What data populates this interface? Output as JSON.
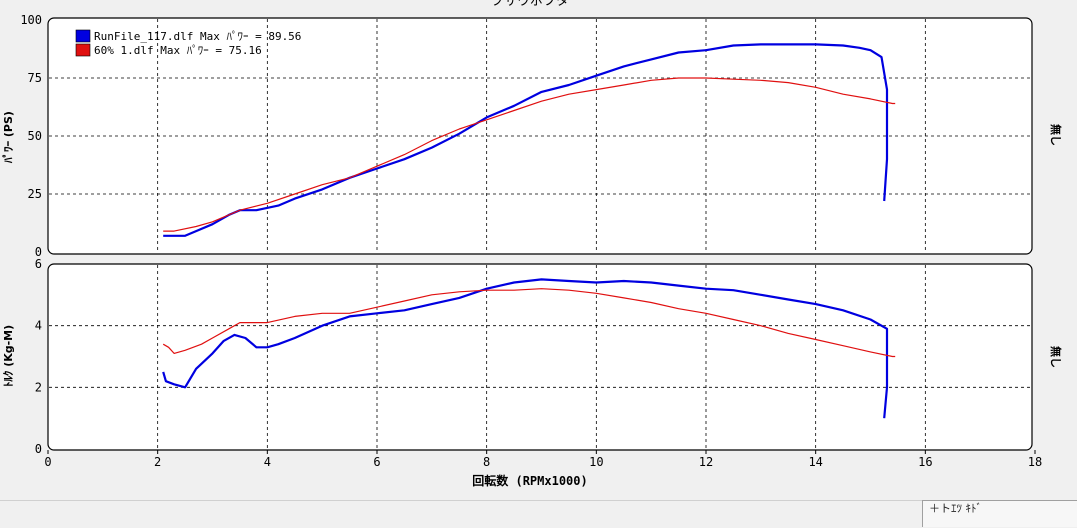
{
  "window": {
    "title": "ブサウボフタ",
    "status_text": "＋トｴﾂ ｷﾄﾞ"
  },
  "colors": {
    "series1": "#0000e0",
    "series2": "#e01010",
    "grid": "#000000",
    "panel_bg": "#ffffff"
  },
  "chart_data": [
    {
      "type": "line",
      "panel": "power",
      "ylabel": "ﾊﾟﾜｰ (PS)",
      "side_label": "無し",
      "xlim": [
        0,
        18
      ],
      "ylim": [
        0,
        100
      ],
      "yticks": [
        0,
        25,
        50,
        75,
        100
      ],
      "grid": true,
      "legend_position": "top-left",
      "legend": [
        "RunFile_117.dlf Max ﾊﾟﾜｰ = 89.56",
        "60% 1.dlf Max ﾊﾟﾜｰ = 75.16"
      ],
      "series": [
        {
          "name": "RunFile_117.dlf",
          "color": "#0000e0",
          "points": [
            [
              2.1,
              7
            ],
            [
              2.5,
              7
            ],
            [
              2.7,
              9
            ],
            [
              3.0,
              12
            ],
            [
              3.3,
              16
            ],
            [
              3.5,
              18
            ],
            [
              3.8,
              18
            ],
            [
              4.2,
              20
            ],
            [
              4.5,
              23
            ],
            [
              5.0,
              27
            ],
            [
              5.5,
              32
            ],
            [
              6.0,
              36
            ],
            [
              6.5,
              40
            ],
            [
              7.0,
              45
            ],
            [
              7.5,
              51
            ],
            [
              8.0,
              58
            ],
            [
              8.5,
              63
            ],
            [
              9.0,
              69
            ],
            [
              9.5,
              72
            ],
            [
              10.0,
              76
            ],
            [
              10.5,
              80
            ],
            [
              11.0,
              83
            ],
            [
              11.5,
              86
            ],
            [
              12.0,
              87
            ],
            [
              12.5,
              89
            ],
            [
              13.0,
              89.5
            ],
            [
              13.5,
              89.5
            ],
            [
              14.0,
              89.5
            ],
            [
              14.5,
              89
            ],
            [
              14.8,
              88
            ],
            [
              15.0,
              87
            ],
            [
              15.2,
              84
            ],
            [
              15.3,
              70
            ],
            [
              15.3,
              40
            ],
            [
              15.25,
              22
            ]
          ]
        },
        {
          "name": "60% 1.dlf",
          "color": "#e01010",
          "points": [
            [
              2.1,
              9
            ],
            [
              2.3,
              9
            ],
            [
              2.7,
              11
            ],
            [
              3.0,
              13
            ],
            [
              3.5,
              18
            ],
            [
              4.0,
              21
            ],
            [
              4.5,
              25
            ],
            [
              5.0,
              29
            ],
            [
              5.5,
              32
            ],
            [
              6.0,
              37
            ],
            [
              6.5,
              42
            ],
            [
              7.0,
              48
            ],
            [
              7.5,
              53
            ],
            [
              8.0,
              57
            ],
            [
              8.5,
              61
            ],
            [
              9.0,
              65
            ],
            [
              9.5,
              68
            ],
            [
              10.0,
              70
            ],
            [
              10.5,
              72
            ],
            [
              11.0,
              74
            ],
            [
              11.5,
              75
            ],
            [
              12.0,
              75
            ],
            [
              12.5,
              74.5
            ],
            [
              13.0,
              74
            ],
            [
              13.5,
              73
            ],
            [
              14.0,
              71
            ],
            [
              14.5,
              68
            ],
            [
              15.0,
              66
            ],
            [
              15.4,
              64
            ],
            [
              15.45,
              64
            ]
          ]
        }
      ]
    },
    {
      "type": "line",
      "panel": "torque",
      "ylabel": "ﾄﾙｸ (Kg-M)",
      "side_label": "無し",
      "xlabel": "回転数 (RPMx1000)",
      "xlim": [
        0,
        18
      ],
      "ylim": [
        0,
        6
      ],
      "yticks": [
        0,
        2,
        4,
        6
      ],
      "xticks": [
        0,
        2,
        4,
        6,
        8,
        10,
        12,
        14,
        16,
        18
      ],
      "grid": true,
      "series": [
        {
          "name": "RunFile_117.dlf",
          "color": "#0000e0",
          "points": [
            [
              2.1,
              2.5
            ],
            [
              2.15,
              2.2
            ],
            [
              2.3,
              2.1
            ],
            [
              2.5,
              2.0
            ],
            [
              2.6,
              2.3
            ],
            [
              2.7,
              2.6
            ],
            [
              3.0,
              3.1
            ],
            [
              3.2,
              3.5
            ],
            [
              3.4,
              3.7
            ],
            [
              3.6,
              3.6
            ],
            [
              3.8,
              3.3
            ],
            [
              4.0,
              3.3
            ],
            [
              4.2,
              3.4
            ],
            [
              4.5,
              3.6
            ],
            [
              5.0,
              4.0
            ],
            [
              5.5,
              4.3
            ],
            [
              6.0,
              4.4
            ],
            [
              6.5,
              4.5
            ],
            [
              7.0,
              4.7
            ],
            [
              7.5,
              4.9
            ],
            [
              8.0,
              5.2
            ],
            [
              8.5,
              5.4
            ],
            [
              9.0,
              5.5
            ],
            [
              9.5,
              5.45
            ],
            [
              10.0,
              5.4
            ],
            [
              10.5,
              5.45
            ],
            [
              11.0,
              5.4
            ],
            [
              11.5,
              5.3
            ],
            [
              12.0,
              5.2
            ],
            [
              12.5,
              5.15
            ],
            [
              13.0,
              5.0
            ],
            [
              13.5,
              4.85
            ],
            [
              14.0,
              4.7
            ],
            [
              14.5,
              4.5
            ],
            [
              15.0,
              4.2
            ],
            [
              15.3,
              3.9
            ],
            [
              15.3,
              2.0
            ],
            [
              15.25,
              1.0
            ]
          ]
        },
        {
          "name": "60% 1.dlf",
          "color": "#e01010",
          "points": [
            [
              2.1,
              3.4
            ],
            [
              2.2,
              3.3
            ],
            [
              2.3,
              3.1
            ],
            [
              2.5,
              3.2
            ],
            [
              2.8,
              3.4
            ],
            [
              3.0,
              3.6
            ],
            [
              3.3,
              3.9
            ],
            [
              3.5,
              4.1
            ],
            [
              4.0,
              4.1
            ],
            [
              4.5,
              4.3
            ],
            [
              5.0,
              4.4
            ],
            [
              5.5,
              4.4
            ],
            [
              6.0,
              4.6
            ],
            [
              6.5,
              4.8
            ],
            [
              7.0,
              5.0
            ],
            [
              7.5,
              5.1
            ],
            [
              8.0,
              5.15
            ],
            [
              8.5,
              5.15
            ],
            [
              9.0,
              5.2
            ],
            [
              9.5,
              5.15
            ],
            [
              10.0,
              5.05
            ],
            [
              10.5,
              4.9
            ],
            [
              11.0,
              4.75
            ],
            [
              11.5,
              4.55
            ],
            [
              12.0,
              4.4
            ],
            [
              12.5,
              4.2
            ],
            [
              13.0,
              4.0
            ],
            [
              13.5,
              3.75
            ],
            [
              14.0,
              3.55
            ],
            [
              14.5,
              3.35
            ],
            [
              15.0,
              3.15
            ],
            [
              15.4,
              3.0
            ],
            [
              15.45,
              3.0
            ]
          ]
        }
      ]
    }
  ]
}
